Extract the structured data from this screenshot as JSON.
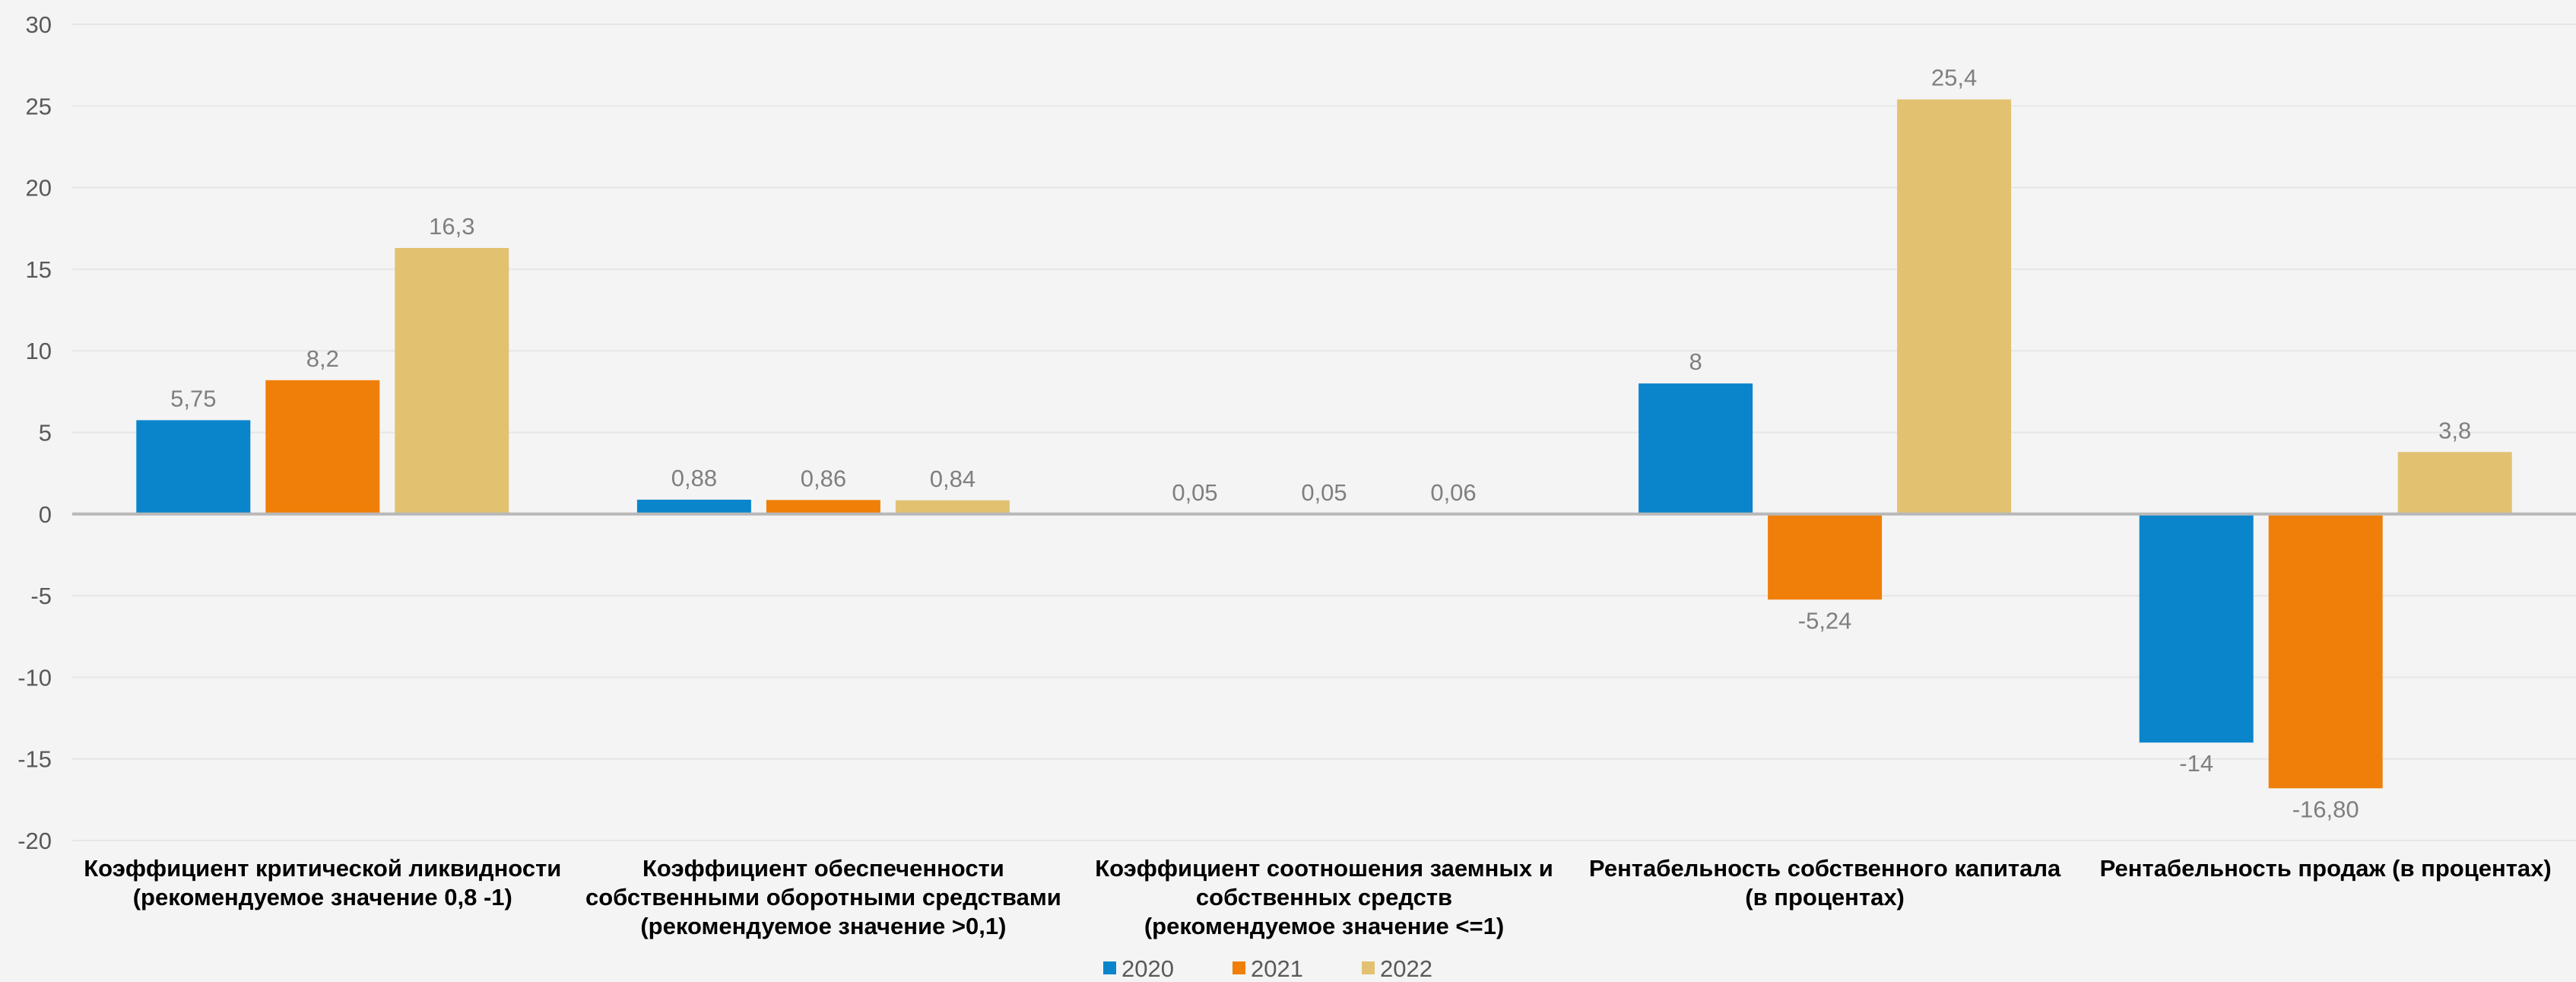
{
  "chart_data": {
    "type": "bar",
    "categories": [
      [
        "Коэффициент критической ликвидности",
        "(рекомендуемое значение 0,8 -1)"
      ],
      [
        "Коэффициент обеспеченности",
        "собственными оборотными средствами",
        "(рекомендуемое значение >0,1)"
      ],
      [
        "Коэффициент соотношения заемных и",
        "собственных средств",
        "(рекомендуемое значение <=1)"
      ],
      [
        "Рентабельность собственного капитала",
        "(в процентах)"
      ],
      [
        "Рентабельность продаж (в процентах)"
      ]
    ],
    "series": [
      {
        "name": "2020",
        "color": "#0a85cc",
        "values": [
          5.75,
          0.88,
          0.05,
          8,
          -14
        ],
        "labels": [
          "5,75",
          "0,88",
          "0,05",
          "8",
          "-14"
        ]
      },
      {
        "name": "2021",
        "color": "#f07f09",
        "values": [
          8.2,
          0.86,
          0.05,
          -5.24,
          -16.8
        ],
        "labels": [
          "8,2",
          "0,86",
          "0,05",
          "-5,24",
          "-16,80"
        ]
      },
      {
        "name": "2022",
        "color": "#e2c271",
        "values": [
          16.3,
          0.84,
          0.06,
          25.4,
          3.8
        ],
        "labels": [
          "16,3",
          "0,84",
          "0,06",
          "25,4",
          "3,8"
        ]
      }
    ],
    "ylim": [
      -20,
      30
    ],
    "yticks": [
      30,
      25,
      20,
      15,
      10,
      5,
      0,
      -5,
      -10,
      -15,
      -20
    ],
    "grid": true,
    "legend_position": "bottom-center",
    "zero_line_color": "#b8b8b8",
    "grid_color": "#e6e6e6"
  }
}
